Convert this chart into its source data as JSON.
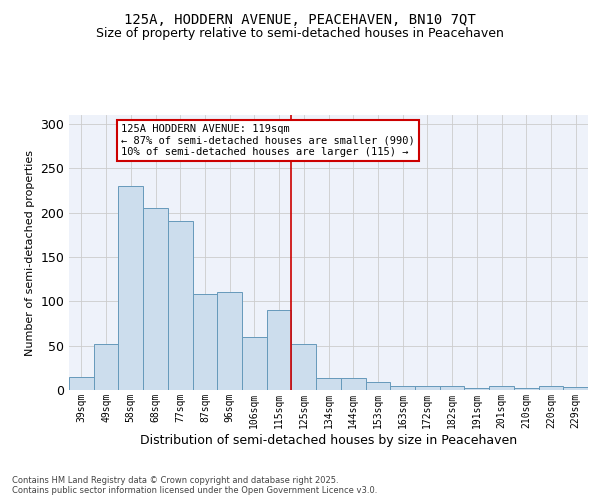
{
  "title": "125A, HODDERN AVENUE, PEACEHAVEN, BN10 7QT",
  "subtitle": "Size of property relative to semi-detached houses in Peacehaven",
  "xlabel": "Distribution of semi-detached houses by size in Peacehaven",
  "ylabel": "Number of semi-detached properties",
  "categories": [
    "39sqm",
    "49sqm",
    "58sqm",
    "68sqm",
    "77sqm",
    "87sqm",
    "96sqm",
    "106sqm",
    "115sqm",
    "125sqm",
    "134sqm",
    "144sqm",
    "153sqm",
    "163sqm",
    "172sqm",
    "182sqm",
    "191sqm",
    "201sqm",
    "210sqm",
    "220sqm",
    "229sqm"
  ],
  "values": [
    15,
    52,
    230,
    205,
    190,
    108,
    110,
    60,
    90,
    52,
    13,
    13,
    9,
    5,
    5,
    5,
    2,
    4,
    2,
    4,
    3
  ],
  "bar_color": "#ccdded",
  "bar_edge_color": "#6699bb",
  "grid_color": "#cccccc",
  "bg_color": "#eef2fa",
  "vline_color": "#cc0000",
  "annotation_text": "125A HODDERN AVENUE: 119sqm\n← 87% of semi-detached houses are smaller (990)\n10% of semi-detached houses are larger (115) →",
  "annotation_box_color": "#cc0000",
  "footer": "Contains HM Land Registry data © Crown copyright and database right 2025.\nContains public sector information licensed under the Open Government Licence v3.0.",
  "ylim": [
    0,
    310
  ],
  "title_fontsize": 10,
  "subtitle_fontsize": 9,
  "annotation_fontsize": 7.5,
  "ylabel_fontsize": 8,
  "xlabel_fontsize": 9
}
